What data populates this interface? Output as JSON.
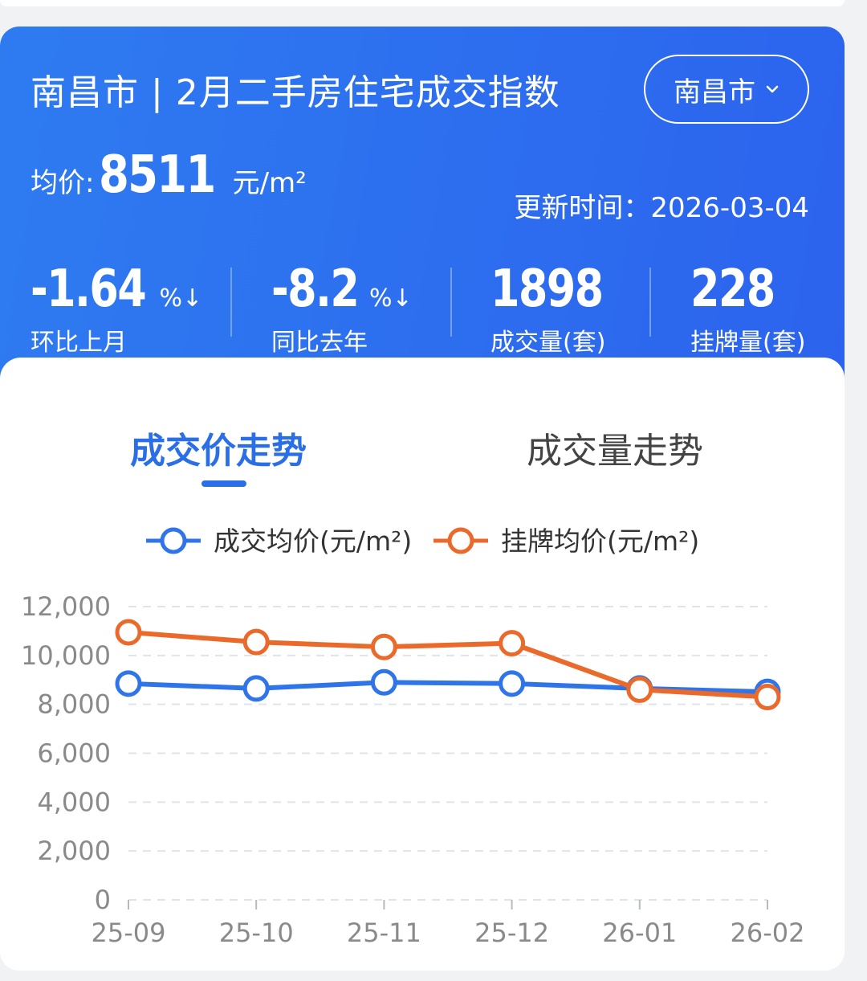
{
  "header": {
    "title": "南昌市 | 2月二手房住宅成交指数",
    "city_selector": "南昌市",
    "avg_price_label": "均价:",
    "avg_price_value": "8511",
    "avg_price_unit": "元/m²",
    "update_time": "更新时间：2026-03-04"
  },
  "stats": [
    {
      "value": "-1.64",
      "suffix": "%↓",
      "label": "环比上月"
    },
    {
      "value": "-8.2",
      "suffix": "%↓",
      "label": "同比去年"
    },
    {
      "value": "1898",
      "suffix": "",
      "label": "成交量(套)"
    },
    {
      "value": "228",
      "suffix": "",
      "label": "挂牌量(套)"
    }
  ],
  "tabs": {
    "active": "成交价走势",
    "inactive": "成交量走势"
  },
  "colors": {
    "header_blue": "#2e6ff0",
    "series_blue": "#2f74e8",
    "series_orange": "#ea6a2b"
  },
  "chart_data": {
    "type": "line",
    "categories": [
      "25-09",
      "25-10",
      "25-11",
      "25-12",
      "26-01",
      "26-02"
    ],
    "series": [
      {
        "name": "成交均价(元/m²)",
        "color": "#2f74e8",
        "values": [
          8850,
          8650,
          8900,
          8850,
          8650,
          8511
        ]
      },
      {
        "name": "挂牌均价(元/m²)",
        "color": "#ea6a2b",
        "values": [
          10950,
          10550,
          10350,
          10500,
          8600,
          8300
        ]
      }
    ],
    "ylim": [
      0,
      12000
    ],
    "yticks": [
      "0",
      "2,000",
      "4,000",
      "6,000",
      "8,000",
      "10,000",
      "12,000"
    ],
    "grid": true,
    "legend": "top-center"
  }
}
